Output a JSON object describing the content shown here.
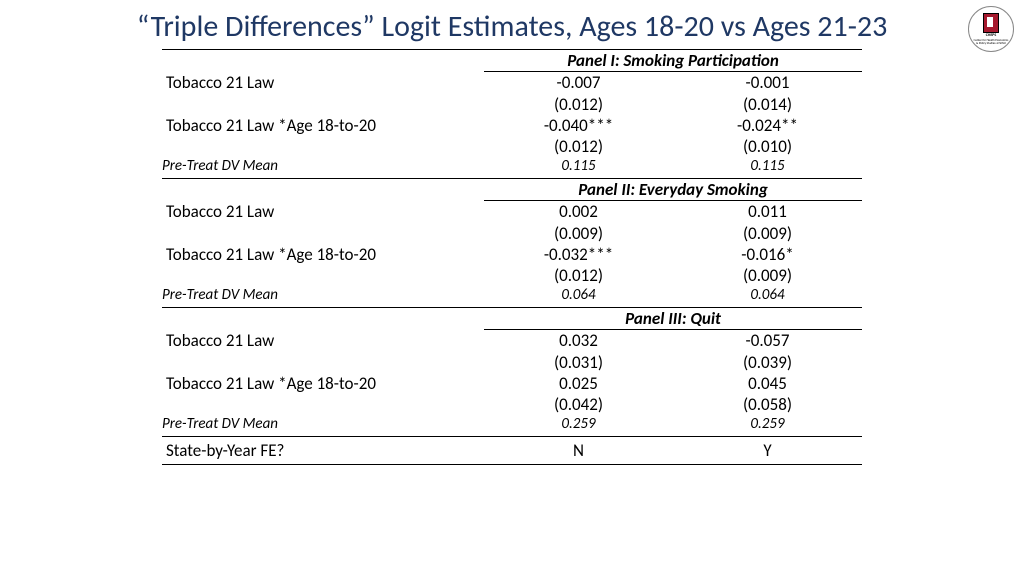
{
  "title": "“Triple Differences” Logit Estimates, Ages 18-20 vs Ages 21-23",
  "logo": {
    "top": "CHEPS",
    "line1": "Center for Health Economics",
    "line2": "& Policy Studies at SDSU"
  },
  "row_labels": {
    "t21": "Tobacco 21 Law",
    "t21_int": "Tobacco 21 Law *Age 18-to-20",
    "mean": "Pre-Treat DV Mean",
    "fe": "State-by-Year FE?"
  },
  "panels": [
    {
      "title": "Panel I: Smoking Participation",
      "t21": {
        "c1": "-0.007",
        "se1": "(0.012)",
        "c2": "-0.001",
        "se2": "(0.014)"
      },
      "int": {
        "c1": "-0.040***",
        "se1": "(0.012)",
        "c2": "-0.024**",
        "se2": "(0.010)"
      },
      "mean": {
        "c1": "0.115",
        "c2": "0.115"
      }
    },
    {
      "title": "Panel II: Everyday Smoking",
      "t21": {
        "c1": "0.002",
        "se1": "(0.009)",
        "c2": "0.011",
        "se2": "(0.009)"
      },
      "int": {
        "c1": "-0.032***",
        "se1": "(0.012)",
        "c2": "-0.016*",
        "se2": "(0.009)"
      },
      "mean": {
        "c1": "0.064",
        "c2": "0.064"
      }
    },
    {
      "title": "Panel III: Quit",
      "t21": {
        "c1": "0.032",
        "se1": "(0.031)",
        "c2": "-0.057",
        "se2": "(0.039)"
      },
      "int": {
        "c1": "0.025",
        "se1": "(0.042)",
        "c2": "0.045",
        "se2": "(0.058)"
      },
      "mean": {
        "c1": "0.259",
        "c2": "0.259"
      }
    }
  ],
  "footer": {
    "c1": "N",
    "c2": "Y"
  }
}
